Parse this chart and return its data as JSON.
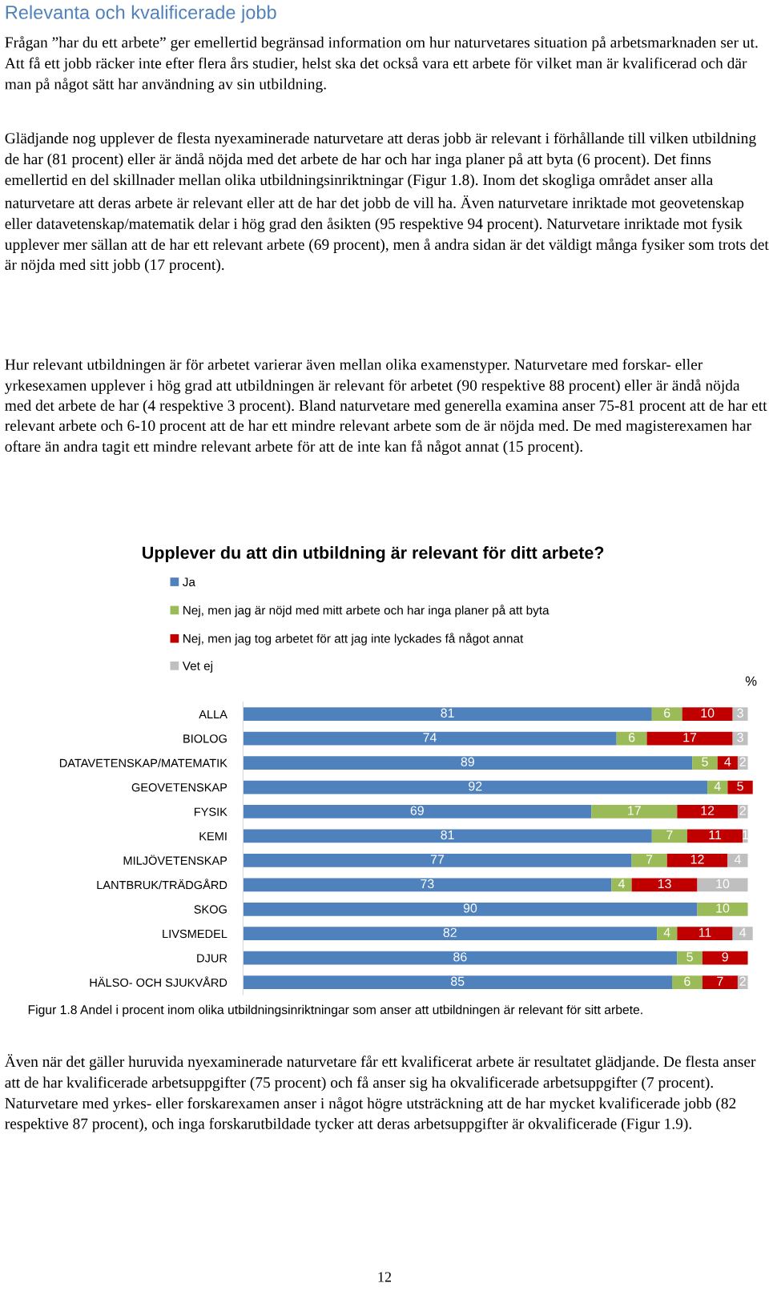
{
  "chart_data": {
    "type": "bar",
    "orientation": "horizontal",
    "stacked": true,
    "title": "Upplever du att din utbildning är relevant för ditt arbete?",
    "categories": [
      "ALLA",
      "BIOLOG",
      "DATAVETENSKAP/MATEMATIK",
      "GEOVETENSKAP",
      "FYSIK",
      "KEMI",
      "MILJÖVETENSKAP",
      "LANTBRUK/TRÄDGÅRD",
      "SKOG",
      "LIVSMEDEL",
      "DJUR",
      "HÄLSO- OCH SJUKVÅRD"
    ],
    "series": [
      {
        "name": "Ja",
        "color": "#4f81bd",
        "values": [
          81,
          74,
          89,
          92,
          69,
          81,
          77,
          73,
          90,
          82,
          86,
          85
        ]
      },
      {
        "name": "Nej, men jag är nöjd med mitt arbete och har inga planer på att byta",
        "color": "#9bbb59",
        "values": [
          6,
          6,
          5,
          4,
          17,
          7,
          7,
          4,
          10,
          4,
          5,
          6
        ]
      },
      {
        "name": "Nej, men jag tog arbetet för att jag inte lyckades få något annat",
        "color": "#c00000",
        "values": [
          10,
          17,
          4,
          5,
          12,
          11,
          12,
          13,
          null,
          11,
          9,
          7
        ]
      },
      {
        "name": "Vet ej",
        "color": "#bfbfbf",
        "values": [
          3,
          3,
          2,
          null,
          2,
          1,
          4,
          10,
          null,
          4,
          null,
          2
        ]
      }
    ],
    "xlim": [
      0,
      101
    ],
    "tick_labels": "y",
    "data_labels": true,
    "legend": "top",
    "grid": false,
    "annotations": [
      "Relevanta och kvalificerade jobb",
      "Frågan ”har du ett arbete” ger emellertid begränsad information om hur naturvetares situation på arbetsmarknaden ser ut. Att få ett jobb räcker inte efter flera års studier, helst ska det också vara ett arbete för vilket man är kvalificerad och där man på något sätt har användning av sin utbildning.",
      "Glädjande nog upplever de flesta nyexaminerade naturvetare att deras jobb är relevant i förhållande till vilken utbildning de har (81 procent) eller är ändå nöjda med det arbete de har och har inga planer på att byta (6 procent). Det finns emellertid en del skillnader mellan olika utbildningsinriktningar (Figur 1.8). Inom det skogliga området anser alla naturvetare att deras arbete är relevant eller att de har det jobb de vill ha. Även naturvetare inriktade mot geovetenskap eller datavetenskap/matematik delar i hög grad den åsikten (95 respektive 94 procent). Naturvetare inriktade mot fysik upplever mer sällan att de har ett relevant arbete (69 procent), men å andra sidan är det väldigt många fysiker som trots det är nöjda med sitt jobb (17 procent).",
      "Hur relevant utbildningen är för arbetet varierar även mellan olika examenstyper. Naturvetare med forskar- eller yrkesexamen upplever i hög grad att utbildningen är relevant för arbetet (90 respektive 88 procent) eller är ändå nöjda med det arbete de har (4 respektive 3 procent). Bland naturvetare med generella examina anser 75-81 procent att de har ett relevant arbete och 6-10 procent att de har ett mindre relevant arbete som de är nöjda med. De med magisterexamen har oftare än andra tagit ett mindre relevant arbete för att de inte kan få något annat (15 procent).",
      "%",
      "Figur 1.8 Andel i procent inom olika utbildningsinriktningar som anser att utbildningen är relevant för sitt arbete.",
      "Även när det gäller huruvida nyexaminerade naturvetare får ett kvalificerat arbete är resultatet glädjande. De flesta anser att de har kvalificerade arbetsuppgifter (75 procent) och få anser sig ha okvalificerade arbetsuppgifter (7 procent). Naturvetare med yrkes- eller forskarexamen anser i något högre utsträckning att de har mycket kvalificerade jobb (82 respektive 87 procent), och inga forskarutbildade tycker att deras arbetsuppgifter är okvalificerade (Figur 1.9).",
      "12"
    ]
  }
}
